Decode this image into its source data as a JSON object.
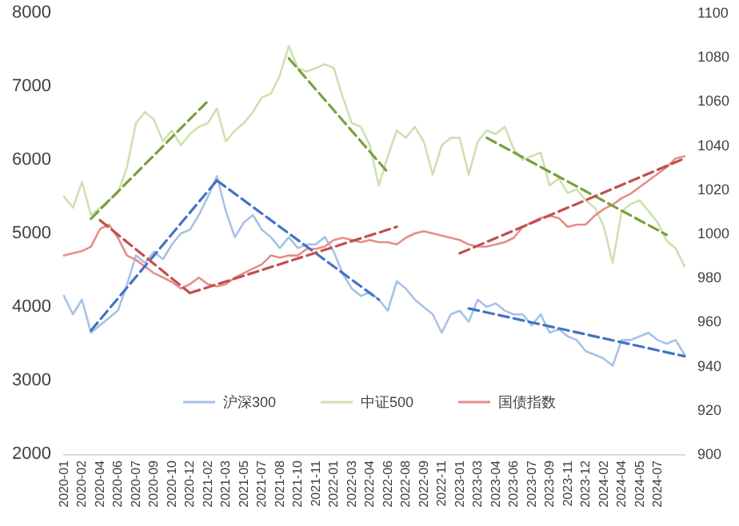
{
  "chart_data": {
    "type": "line",
    "marker": "none",
    "legend": "bottom",
    "line_style": "solid",
    "categories": [
      "2020-01",
      null,
      "2020-02",
      null,
      "2020-04",
      null,
      "2020-06",
      null,
      "2020-07",
      null,
      "2020-09",
      null,
      "2020-10",
      null,
      "2020-12",
      null,
      "2021-02",
      null,
      "2021-03",
      null,
      "2021-05",
      null,
      "2021-07",
      null,
      "2021-08",
      null,
      "2021-10",
      null,
      "2021-11",
      null,
      "2022-01",
      null,
      "2022-03",
      null,
      "2022-04",
      null,
      "2022-06",
      null,
      "2022-08",
      null,
      "2022-09",
      null,
      "2022-11",
      null,
      "2023-01",
      null,
      "2023-03",
      null,
      "2023-04",
      null,
      "2023-06",
      null,
      "2023-07",
      null,
      "2023-09",
      null,
      "2023-11",
      null,
      "2023-12",
      null,
      "2024-02",
      null,
      "2024-04",
      null,
      "2024-05",
      null,
      "2024-07",
      null,
      null,
      null
    ],
    "ylim": [
      2000,
      8000
    ],
    "yticks": [
      2000,
      3000,
      4000,
      5000,
      6000,
      7000,
      8000
    ],
    "y2lim": [
      900,
      1100
    ],
    "y2ticks": [
      900,
      920,
      940,
      960,
      980,
      1000,
      1020,
      1040,
      1060,
      1080,
      1100
    ],
    "series": [
      {
        "name": "沪深300",
        "color": "#a6c2e6",
        "values": [
          4150,
          3900,
          4100,
          3650,
          3750,
          3850,
          3950,
          4300,
          4700,
          4600,
          4750,
          4650,
          4850,
          5000,
          5050,
          5250,
          5500,
          5780,
          5300,
          4950,
          5150,
          5250,
          5050,
          4950,
          4800,
          4950,
          4800,
          4850,
          4850,
          4950,
          4750,
          4450,
          4250,
          4150,
          4200,
          4100,
          3950,
          4350,
          4250,
          4100,
          4000,
          3900,
          3650,
          3900,
          3950,
          3800,
          4100,
          4000,
          4050,
          3950,
          3900,
          3900,
          3750,
          3900,
          3650,
          3700,
          3600,
          3550,
          3400,
          3350,
          3300,
          3200,
          3550,
          3550,
          3600,
          3650,
          3550,
          3500,
          3550,
          3350
        ]
      },
      {
        "name": "中证500",
        "color": "#cfe0b0",
        "values": [
          5500,
          5350,
          5700,
          5250,
          5350,
          5450,
          5550,
          5900,
          6500,
          6650,
          6550,
          6250,
          6400,
          6200,
          6350,
          6450,
          6500,
          6700,
          6250,
          6400,
          6500,
          6650,
          6850,
          6900,
          7150,
          7550,
          7250,
          7200,
          7250,
          7300,
          7250,
          6850,
          6500,
          6450,
          6200,
          5650,
          6050,
          6400,
          6300,
          6450,
          6250,
          5800,
          6200,
          6300,
          6300,
          5800,
          6250,
          6400,
          6350,
          6450,
          6150,
          6000,
          6050,
          6100,
          5650,
          5750,
          5550,
          5600,
          5450,
          5350,
          5100,
          4600,
          5300,
          5400,
          5450,
          5300,
          5150,
          4900,
          4800,
          4550
        ]
      },
      {
        "name": "国债指数",
        "color": "#e58d8b",
        "axis": "y2",
        "values": [
          990,
          991,
          992,
          994,
          1002,
          1004,
          998,
          990,
          988,
          985,
          982,
          980,
          978,
          975,
          977,
          980,
          977,
          976,
          977,
          980,
          982,
          984,
          986,
          990,
          989,
          990,
          990,
          993,
          993,
          994,
          997,
          998,
          997,
          996,
          997,
          996,
          996,
          995,
          998,
          1000,
          1001,
          1000,
          999,
          998,
          997,
          995,
          994,
          994,
          995,
          996,
          998,
          1003,
          1005,
          1007,
          1008,
          1007,
          1003,
          1004,
          1004,
          1008,
          1011,
          1013,
          1016,
          1018,
          1021,
          1024,
          1027,
          1030,
          1034,
          1035
        ]
      },
      {
        "color": "#4472c4",
        "line_style": "dashed",
        "values": [
          null,
          null,
          null,
          3680,
          null,
          null,
          null,
          null,
          null,
          null,
          null,
          null,
          null,
          null,
          null,
          null,
          null,
          5720,
          null,
          null,
          null,
          null,
          null,
          null,
          null,
          null,
          null,
          null,
          null,
          null,
          null,
          null,
          null,
          null,
          null,
          null,
          null,
          null,
          null,
          null,
          null,
          null,
          null,
          null,
          null,
          null,
          null,
          null,
          null,
          null,
          null,
          null,
          null,
          null,
          null,
          null,
          null,
          null,
          null,
          null,
          null,
          null,
          null,
          null,
          null,
          null,
          null,
          null,
          null,
          null
        ]
      },
      {
        "color": "#4472c4",
        "line_style": "dashed",
        "values": [
          null,
          null,
          null,
          null,
          null,
          null,
          null,
          null,
          null,
          null,
          null,
          null,
          null,
          null,
          null,
          null,
          null,
          5720,
          null,
          null,
          null,
          null,
          null,
          null,
          null,
          null,
          null,
          null,
          null,
          null,
          null,
          null,
          null,
          null,
          null,
          4100,
          null,
          null,
          null,
          null,
          null,
          null,
          null,
          null,
          null,
          null,
          null,
          null,
          null,
          null,
          null,
          null,
          null,
          null,
          null,
          null,
          null,
          null,
          null,
          null,
          null,
          null,
          null,
          null,
          null,
          null,
          null,
          null,
          null,
          null
        ]
      },
      {
        "color": "#4472c4",
        "line_style": "dashed",
        "values": [
          null,
          null,
          null,
          null,
          null,
          null,
          null,
          null,
          null,
          null,
          null,
          null,
          null,
          null,
          null,
          null,
          null,
          null,
          null,
          null,
          null,
          null,
          null,
          null,
          null,
          null,
          null,
          null,
          null,
          null,
          null,
          null,
          null,
          null,
          null,
          null,
          null,
          null,
          null,
          null,
          null,
          null,
          null,
          null,
          null,
          3980,
          null,
          null,
          null,
          null,
          null,
          null,
          null,
          null,
          null,
          null,
          null,
          null,
          null,
          null,
          null,
          null,
          null,
          null,
          null,
          null,
          null,
          null,
          null,
          3330
        ]
      },
      {
        "color": "#77a03c",
        "line_style": "dashed",
        "values": [
          null,
          null,
          null,
          5200,
          null,
          null,
          null,
          null,
          null,
          null,
          null,
          null,
          null,
          null,
          null,
          null,
          6800,
          null,
          null,
          null,
          null,
          null,
          null,
          null,
          null,
          null,
          null,
          null,
          null,
          null,
          null,
          null,
          null,
          null,
          null,
          null,
          null,
          null,
          null,
          null,
          null,
          null,
          null,
          null,
          null,
          null,
          null,
          null,
          null,
          null,
          null,
          null,
          null,
          null,
          null,
          null,
          null,
          null,
          null,
          null,
          null,
          null,
          null,
          null,
          null,
          null,
          null,
          null,
          null,
          null
        ]
      },
      {
        "color": "#77a03c",
        "line_style": "dashed",
        "values": [
          null,
          null,
          null,
          null,
          null,
          null,
          null,
          null,
          null,
          null,
          null,
          null,
          null,
          null,
          null,
          null,
          null,
          null,
          null,
          null,
          null,
          null,
          null,
          null,
          null,
          7380,
          null,
          null,
          null,
          null,
          null,
          null,
          null,
          null,
          null,
          null,
          5830,
          null,
          null,
          null,
          null,
          null,
          null,
          null,
          null,
          null,
          null,
          null,
          null,
          null,
          null,
          null,
          null,
          null,
          null,
          null,
          null,
          null,
          null,
          null,
          null,
          null,
          null,
          null,
          null,
          null,
          null,
          null,
          null,
          null
        ]
      },
      {
        "color": "#77a03c",
        "line_style": "dashed",
        "values": [
          null,
          null,
          null,
          null,
          null,
          null,
          null,
          null,
          null,
          null,
          null,
          null,
          null,
          null,
          null,
          null,
          null,
          null,
          null,
          null,
          null,
          null,
          null,
          null,
          null,
          null,
          null,
          null,
          null,
          null,
          null,
          null,
          null,
          null,
          null,
          null,
          null,
          null,
          null,
          null,
          null,
          null,
          null,
          null,
          null,
          null,
          null,
          6300,
          null,
          null,
          null,
          null,
          null,
          null,
          null,
          null,
          null,
          null,
          null,
          null,
          null,
          null,
          null,
          null,
          null,
          null,
          null,
          4980,
          null,
          null
        ]
      },
      {
        "color": "#c0504d",
        "line_style": "dashed",
        "axis": "y2",
        "values": [
          null,
          null,
          null,
          null,
          1006,
          null,
          null,
          null,
          null,
          null,
          null,
          null,
          null,
          null,
          973,
          null,
          null,
          null,
          null,
          null,
          null,
          null,
          null,
          null,
          null,
          null,
          null,
          null,
          null,
          null,
          null,
          null,
          null,
          null,
          null,
          null,
          null,
          null,
          null,
          null,
          null,
          null,
          null,
          null,
          null,
          null,
          null,
          null,
          null,
          null,
          null,
          null,
          null,
          null,
          null,
          null,
          null,
          null,
          null,
          null,
          null,
          null,
          null,
          null,
          null,
          null,
          null,
          null,
          null,
          null
        ]
      },
      {
        "color": "#c0504d",
        "line_style": "dashed",
        "axis": "y2",
        "values": [
          null,
          null,
          null,
          null,
          null,
          null,
          null,
          null,
          null,
          null,
          null,
          null,
          null,
          null,
          973,
          null,
          null,
          null,
          null,
          null,
          null,
          null,
          null,
          null,
          null,
          null,
          null,
          null,
          null,
          null,
          null,
          null,
          null,
          null,
          null,
          null,
          null,
          1003,
          null,
          null,
          null,
          null,
          null,
          null,
          null,
          null,
          null,
          null,
          null,
          null,
          null,
          null,
          null,
          null,
          null,
          null,
          null,
          null,
          null,
          null,
          null,
          null,
          null,
          null,
          null,
          null,
          null,
          null,
          null,
          null
        ]
      },
      {
        "color": "#c0504d",
        "line_style": "dashed",
        "axis": "y2",
        "values": [
          null,
          null,
          null,
          null,
          null,
          null,
          null,
          null,
          null,
          null,
          null,
          null,
          null,
          null,
          null,
          null,
          null,
          null,
          null,
          null,
          null,
          null,
          null,
          null,
          null,
          null,
          null,
          null,
          null,
          null,
          null,
          null,
          null,
          null,
          null,
          null,
          null,
          null,
          null,
          null,
          null,
          null,
          null,
          null,
          991,
          null,
          null,
          null,
          null,
          null,
          null,
          null,
          null,
          null,
          null,
          null,
          null,
          null,
          null,
          null,
          null,
          null,
          null,
          null,
          null,
          null,
          null,
          null,
          null,
          1034
        ]
      }
    ]
  }
}
